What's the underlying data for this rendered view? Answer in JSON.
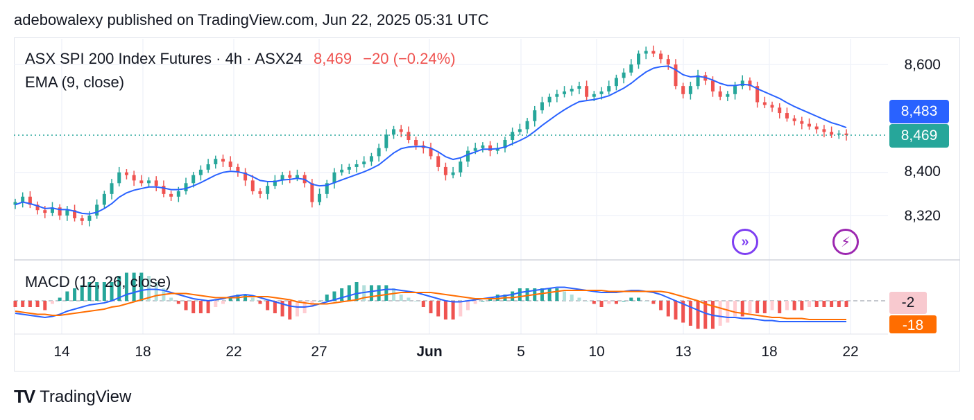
{
  "header": {
    "text": "adebowalexy published on TradingView.com, Jun 22, 2025 05:31 UTC"
  },
  "legend": {
    "symbol": "ASX SPI 200 Index Futures · 4h · ASX24",
    "price": "8,469",
    "change": "−20 (−0.24%)",
    "ema": "EMA (9, close)",
    "macd": "MACD (12, 26, close)"
  },
  "price_tags": {
    "ema": "8,483",
    "last": "8,469"
  },
  "macd_tags": {
    "hist": "-2",
    "signal": "-18"
  },
  "yaxis_labels": [
    "8,600",
    "8,400",
    "8,320"
  ],
  "xaxis_labels": [
    "14",
    "18",
    "22",
    "27",
    "Jun",
    "5",
    "10",
    "13",
    "18",
    "22"
  ],
  "footer": {
    "brand": "TradingView"
  },
  "colors": {
    "up": "#26a69a",
    "down": "#ef5350",
    "ema": "#2962ff",
    "macd": "#2962ff",
    "signal": "#ff6d00"
  },
  "chart_data": {
    "type": "candlestick",
    "interval": "4h",
    "ylim": [
      8250,
      8650
    ],
    "y_ticks": [
      8320,
      8400,
      8600
    ],
    "x_ticks": [
      "14",
      "18",
      "22",
      "27",
      "Jun",
      "5",
      "10",
      "13",
      "18",
      "22"
    ],
    "last_price": 8469,
    "ema_last": 8483,
    "close_series": [
      8345,
      8355,
      8340,
      8330,
      8325,
      8335,
      8320,
      8330,
      8315,
      8310,
      8320,
      8340,
      8360,
      8380,
      8400,
      8395,
      8385,
      8380,
      8385,
      8375,
      8360,
      8355,
      8365,
      8380,
      8395,
      8405,
      8415,
      8425,
      8420,
      8410,
      8400,
      8385,
      8365,
      8360,
      8375,
      8385,
      8395,
      8390,
      8395,
      8380,
      8345,
      8360,
      8380,
      8400,
      8405,
      8410,
      8415,
      8420,
      8430,
      8445,
      8470,
      8480,
      8475,
      8460,
      8450,
      8445,
      8430,
      8410,
      8395,
      8400,
      8420,
      8440,
      8445,
      8450,
      8440,
      8445,
      8460,
      8475,
      8480,
      8495,
      8515,
      8530,
      8540,
      8545,
      8550,
      8555,
      8560,
      8540,
      8545,
      8550,
      8560,
      8575,
      8585,
      8600,
      8620,
      8625,
      8620,
      8610,
      8600,
      8560,
      8545,
      8560,
      8580,
      8570,
      8550,
      8540,
      8545,
      8560,
      8570,
      8560,
      8530,
      8525,
      8520,
      8510,
      8500,
      8495,
      8490,
      8485,
      8480,
      8475,
      8470,
      8472,
      8469
    ],
    "ema_series": [
      8340,
      8345,
      8342,
      8338,
      8333,
      8334,
      8331,
      8331,
      8328,
      8324,
      8323,
      8326,
      8333,
      8342,
      8354,
      8362,
      8367,
      8370,
      8373,
      8373,
      8371,
      8368,
      8368,
      8370,
      8375,
      8381,
      8388,
      8395,
      8400,
      8402,
      8401,
      8398,
      8392,
      8385,
      8383,
      8383,
      8386,
      8387,
      8389,
      8387,
      8378,
      8375,
      8376,
      8381,
      8386,
      8391,
      8396,
      8401,
      8407,
      8414,
      8425,
      8436,
      8444,
      8447,
      8448,
      8448,
      8445,
      8438,
      8429,
      8424,
      8427,
      8433,
      8438,
      8443,
      8443,
      8444,
      8447,
      8453,
      8459,
      8466,
      8476,
      8487,
      8497,
      8507,
      8516,
      8524,
      8531,
      8533,
      8535,
      8538,
      8542,
      8549,
      8556,
      8565,
      8576,
      8586,
      8593,
      8596,
      8597,
      8590,
      8581,
      8577,
      8578,
      8576,
      8571,
      8565,
      8561,
      8561,
      8563,
      8562,
      8555,
      8549,
      8543,
      8537,
      8529,
      8522,
      8516,
      8510,
      8504,
      8498,
      8492,
      8488,
      8483
    ],
    "macd_series": [
      -12,
      -13,
      -14,
      -15,
      -16,
      -15,
      -13,
      -10,
      -8,
      -6,
      -4,
      -3,
      -2,
      0,
      3,
      6,
      8,
      10,
      11,
      11,
      10,
      8,
      6,
      4,
      2,
      1,
      0,
      1,
      2,
      4,
      5,
      6,
      5,
      3,
      1,
      -1,
      -3,
      -5,
      -6,
      -6,
      -5,
      -3,
      -1,
      1,
      3,
      5,
      7,
      8,
      9,
      10,
      11,
      11,
      10,
      9,
      8,
      6,
      4,
      2,
      0,
      -1,
      -1,
      0,
      1,
      2,
      3,
      4,
      5,
      6,
      8,
      9,
      10,
      11,
      12,
      13,
      13,
      12,
      11,
      10,
      9,
      8,
      8,
      8,
      9,
      10,
      10,
      9,
      8,
      6,
      3,
      0,
      -3,
      -6,
      -9,
      -12,
      -14,
      -15,
      -16,
      -16,
      -17,
      -17,
      -18,
      -19,
      -19,
      -20,
      -20,
      -20,
      -20,
      -20,
      -20,
      -20,
      -20,
      -20,
      -20
    ],
    "signal_series": [
      -10,
      -11,
      -12,
      -13,
      -13,
      -14,
      -14,
      -13,
      -12,
      -11,
      -10,
      -9,
      -8,
      -6,
      -5,
      -3,
      -1,
      1,
      3,
      5,
      6,
      7,
      7,
      7,
      6,
      5,
      4,
      3,
      3,
      3,
      3,
      4,
      4,
      4,
      4,
      3,
      2,
      1,
      -1,
      -2,
      -3,
      -3,
      -3,
      -2,
      -1,
      0,
      1,
      3,
      4,
      5,
      6,
      7,
      8,
      8,
      8,
      8,
      8,
      7,
      6,
      5,
      4,
      3,
      2,
      2,
      2,
      2,
      3,
      3,
      4,
      5,
      6,
      7,
      8,
      9,
      10,
      10,
      10,
      10,
      10,
      10,
      9,
      9,
      9,
      9,
      9,
      9,
      9,
      9,
      8,
      6,
      4,
      2,
      0,
      -3,
      -5,
      -7,
      -9,
      -11,
      -12,
      -13,
      -14,
      -15,
      -16,
      -16,
      -17,
      -17,
      -17,
      -18,
      -18,
      -18,
      -18,
      -18,
      -18
    ]
  }
}
